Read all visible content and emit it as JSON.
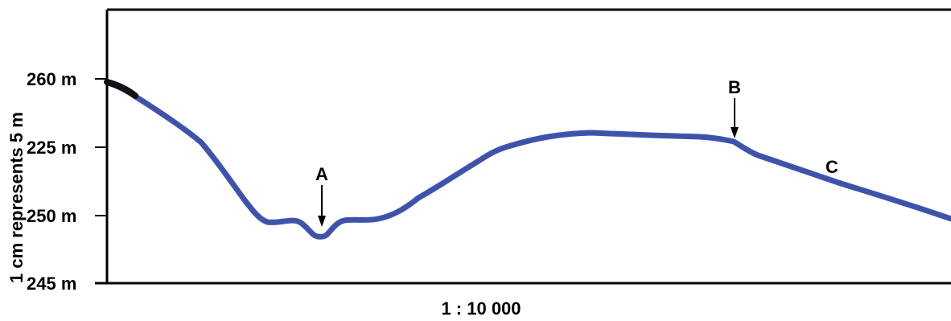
{
  "vertical_scale_label": "1 cm represents 5 m",
  "horizontal_scale_label": "1 : 10 000",
  "height_labels": [
    "260 m",
    "225 m",
    "250 m",
    "245 m"
  ],
  "point_labels": {
    "a": "A",
    "b": "B",
    "c": "C"
  },
  "colors": {
    "profile_line": "#3a55b4",
    "profile_start": "#111111",
    "frame": "#000000"
  }
}
